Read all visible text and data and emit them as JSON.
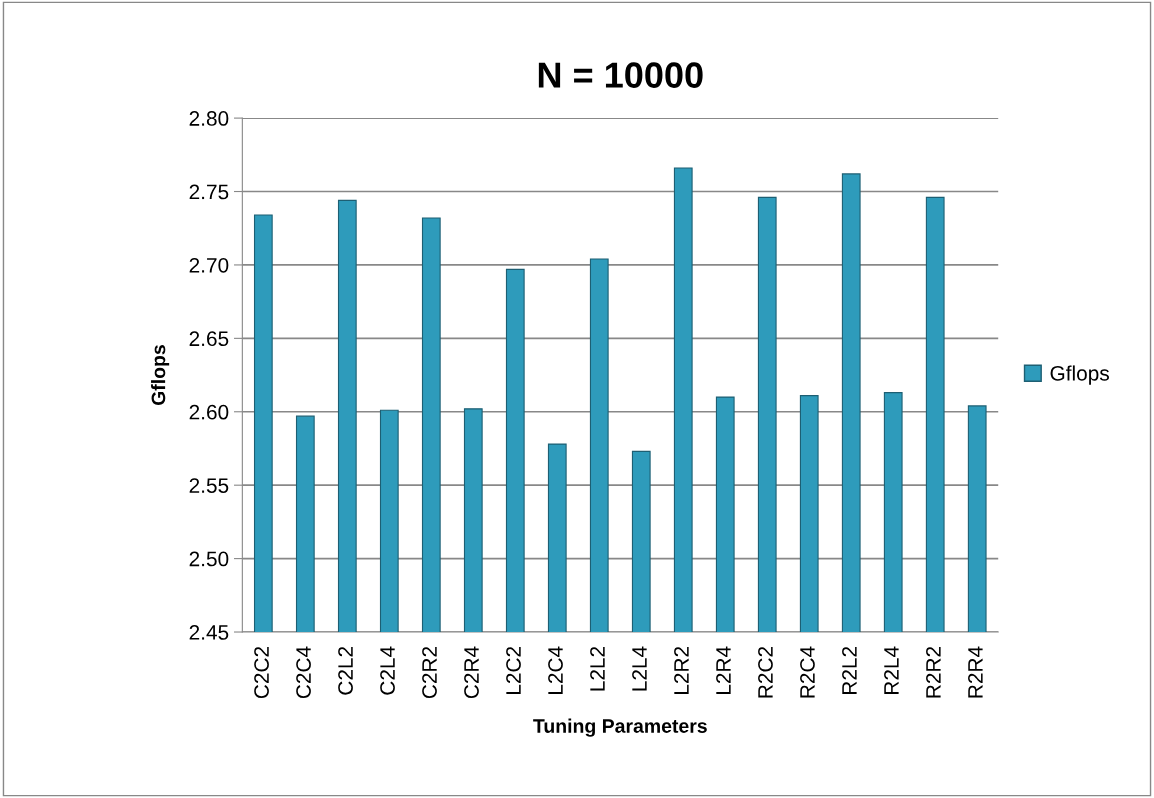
{
  "chart_data": {
    "type": "bar",
    "title": "N = 10000",
    "xlabel": "Tuning Parameters",
    "ylabel": "Gflops",
    "categories": [
      "C2C2",
      "C2C4",
      "C2L2",
      "C2L4",
      "C2R2",
      "C2R4",
      "L2C2",
      "L2C4",
      "L2L2",
      "L2L4",
      "L2R2",
      "L2R4",
      "R2C2",
      "R2C4",
      "R2L2",
      "R2L4",
      "R2R2",
      "R2R4"
    ],
    "series": [
      {
        "name": "Gflops",
        "color": "#2e9bbb",
        "values": [
          2.734,
          2.597,
          2.744,
          2.601,
          2.732,
          2.602,
          2.697,
          2.578,
          2.704,
          2.573,
          2.766,
          2.61,
          2.746,
          2.611,
          2.762,
          2.613,
          2.746,
          2.604
        ]
      }
    ],
    "ylim": [
      2.45,
      2.8
    ],
    "yticks": [
      {
        "value": 2.45,
        "label": "2.45"
      },
      {
        "value": 2.5,
        "label": "2.50"
      },
      {
        "value": 2.55,
        "label": "2.55"
      },
      {
        "value": 2.6,
        "label": "2.60"
      },
      {
        "value": 2.65,
        "label": "2.65"
      },
      {
        "value": 2.7,
        "label": "2.70"
      },
      {
        "value": 2.75,
        "label": "2.75"
      },
      {
        "value": 2.8,
        "label": "2.80"
      }
    ],
    "grid": "y",
    "legend": "right"
  }
}
